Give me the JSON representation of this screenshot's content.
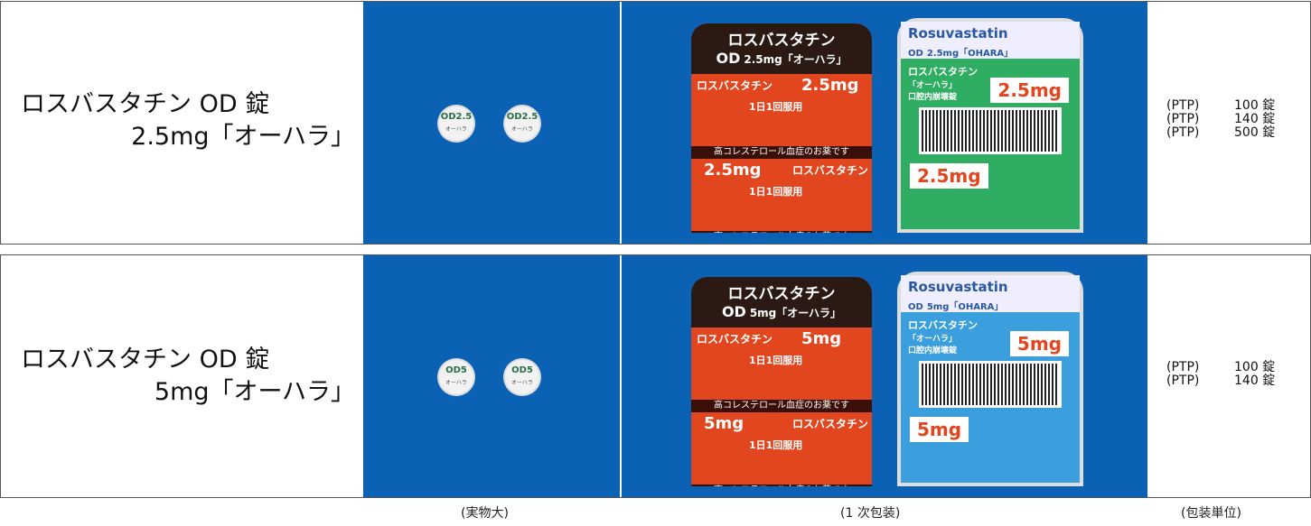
{
  "rows": [
    {
      "name": [
        "ロスバスタチン OD 錠",
        "2.5mg「オーハラ」"
      ],
      "tablet": {
        "imprint": "OD2.5",
        "maker": "オーハラ"
      },
      "blister": {
        "brand": "ロスバスタチン",
        "od": "OD",
        "strength": "2.5mg「オーハラ」",
        "dose": "2.5mg",
        "usage": "1日1回服用",
        "note": "高コレステロール血症のお薬です"
      },
      "back": {
        "color": "#2fae63",
        "title": "Rosuvastatin",
        "od": "OD",
        "strength": "2.5mg「OHARA」",
        "brand": "ロスバスタチン",
        "maker": "「オーハラ」",
        "form": "口腔内崩壊錠",
        "dose": "2.5mg"
      },
      "packages": [
        {
          "kind": "(PTP)",
          "count": "100 錠"
        },
        {
          "kind": "(PTP)",
          "count": "140 錠"
        },
        {
          "kind": "(PTP)",
          "count": "500 錠"
        }
      ]
    },
    {
      "name": [
        "ロスバスタチン OD 錠",
        "5mg「オーハラ」"
      ],
      "tablet": {
        "imprint": "OD5",
        "maker": "オーハラ"
      },
      "blister": {
        "brand": "ロスバスタチン",
        "od": "OD",
        "strength": "5mg「オーハラ」",
        "dose": "5mg",
        "usage": "1日1回服用",
        "note": "高コレステロール血症のお薬です"
      },
      "back": {
        "color": "#3b9fdd",
        "title": "Rosuvastatin",
        "od": "OD",
        "strength": "5mg「OHARA」",
        "brand": "ロスバスタチン",
        "maker": "「オーハラ」",
        "form": "口腔内崩壊錠",
        "dose": "5mg"
      },
      "packages": [
        {
          "kind": "(PTP)",
          "count": "100 錠"
        },
        {
          "kind": "(PTP)",
          "count": "140 錠"
        }
      ]
    }
  ],
  "footer": [
    "(実物大)",
    "(1 次包装)",
    "(包装単位)"
  ]
}
